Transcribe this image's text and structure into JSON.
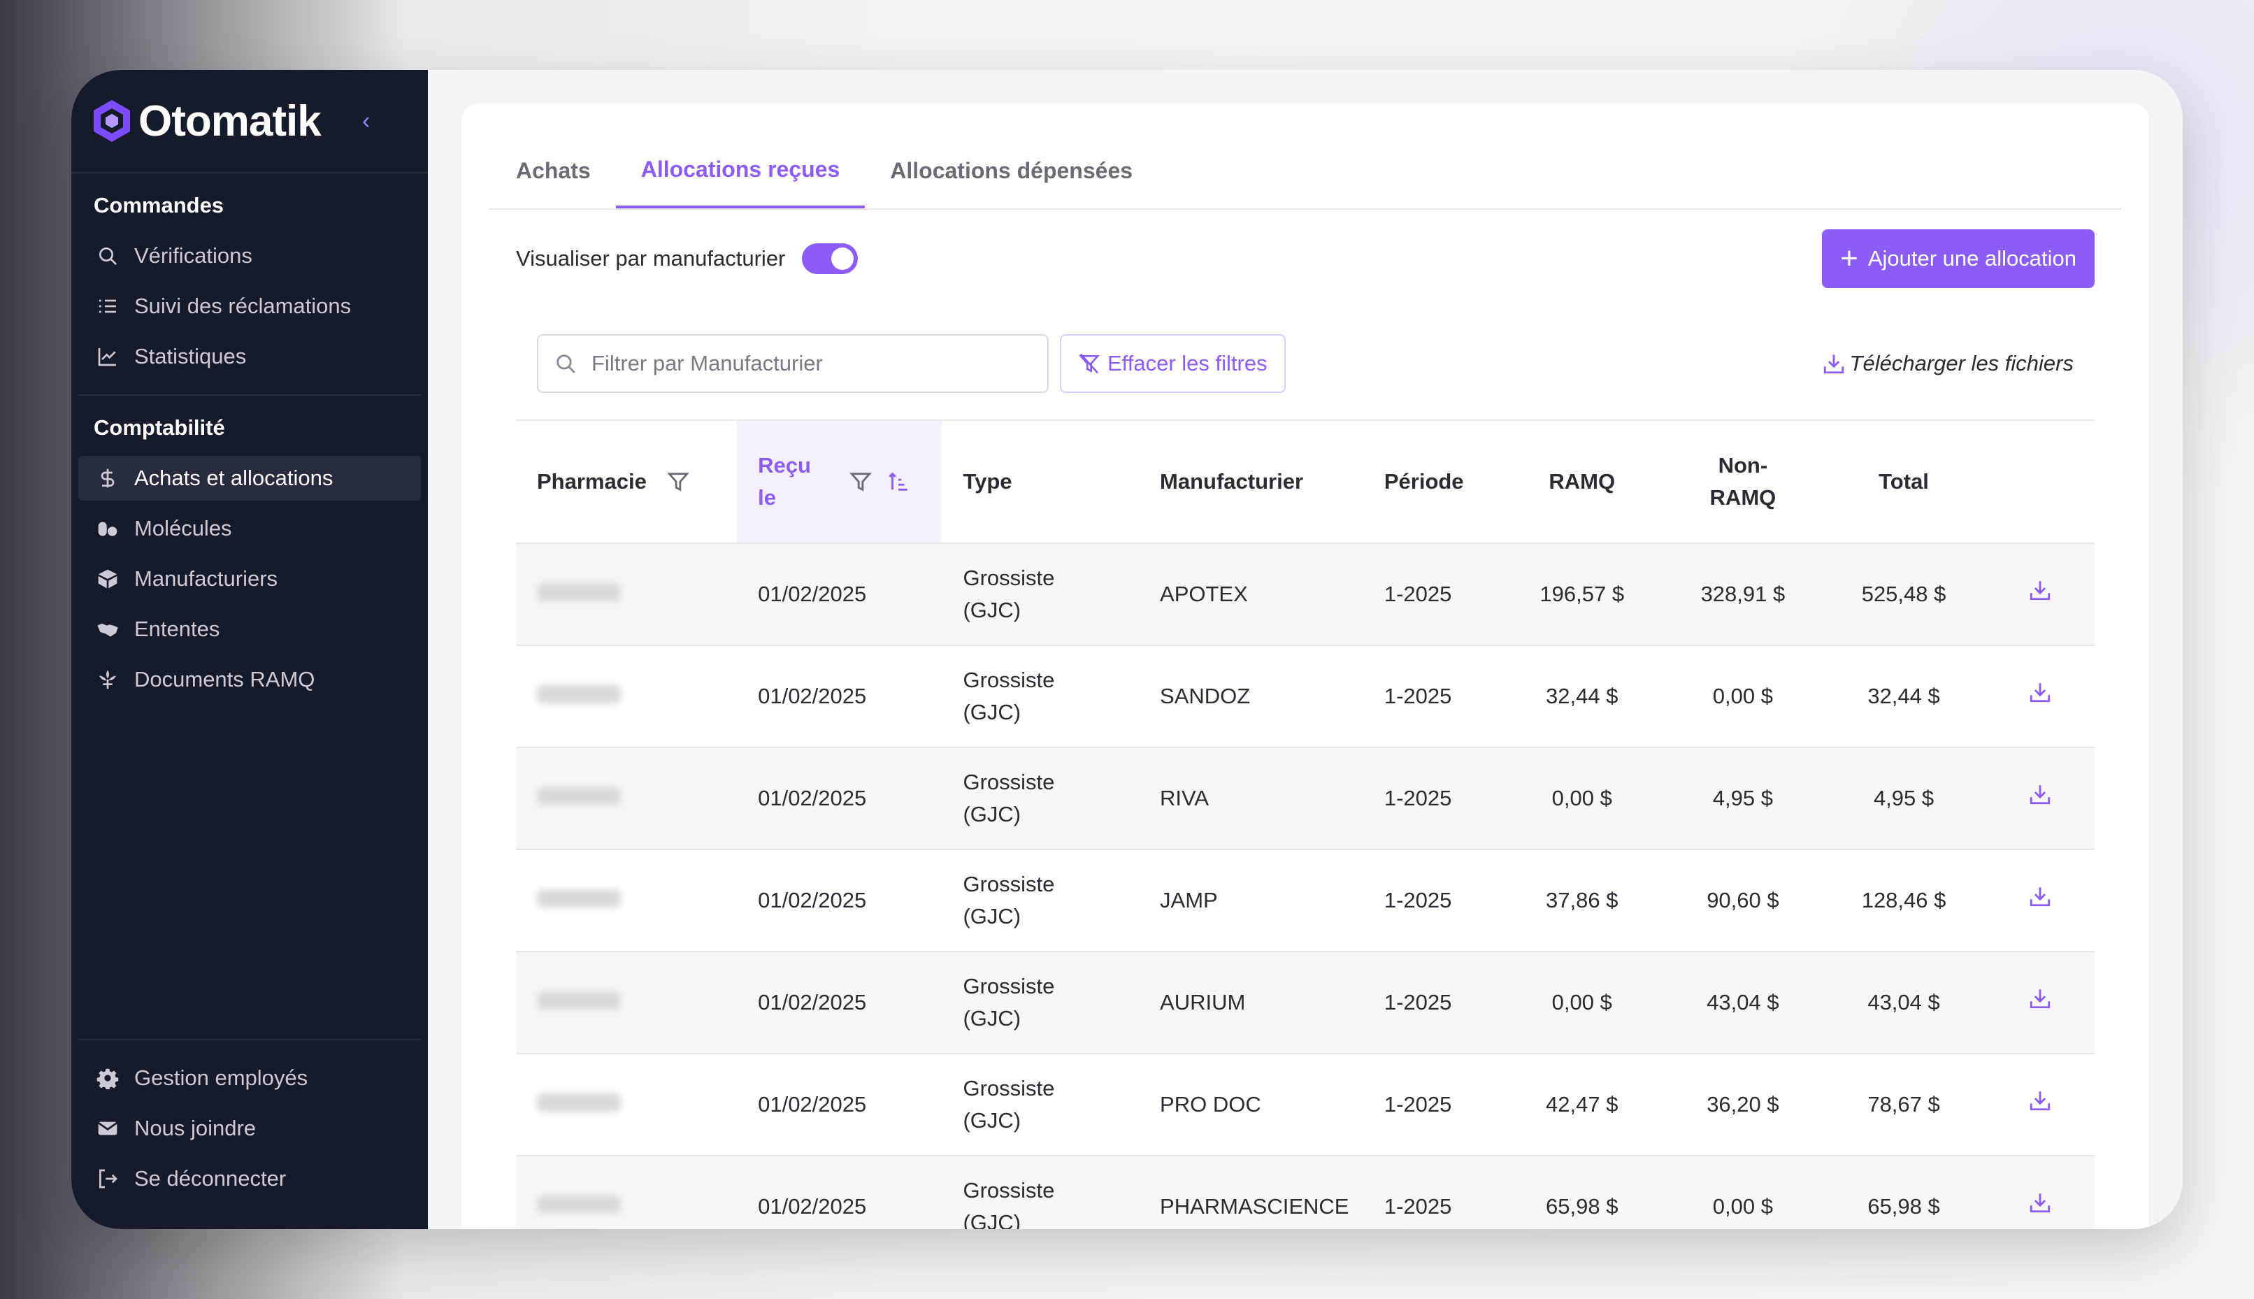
{
  "brand": {
    "name": "Otomatik",
    "accent": "#8b5cf6",
    "sidebar_bg": "#161b2b"
  },
  "sidebar": {
    "sections": [
      {
        "title": "Commandes",
        "items": [
          {
            "label": "Vérifications",
            "icon": "search-icon"
          },
          {
            "label": "Suivi des réclamations",
            "icon": "list-icon"
          },
          {
            "label": "Statistiques",
            "icon": "chart-icon"
          }
        ]
      },
      {
        "title": "Comptabilité",
        "items": [
          {
            "label": "Achats et allocations",
            "icon": "dollar-icon",
            "active": true
          },
          {
            "label": "Molécules",
            "icon": "pills-icon"
          },
          {
            "label": "Manufacturiers",
            "icon": "box-icon"
          },
          {
            "label": "Ententes",
            "icon": "handshake-icon"
          },
          {
            "label": "Documents RAMQ",
            "icon": "flower-icon"
          }
        ]
      }
    ],
    "bottom": [
      {
        "label": "Gestion employés",
        "icon": "gear-icon"
      },
      {
        "label": "Nous joindre",
        "icon": "mail-icon"
      },
      {
        "label": "Se déconnecter",
        "icon": "logout-icon"
      }
    ]
  },
  "tabs": [
    "Achats",
    "Allocations reçues",
    "Allocations dépensées"
  ],
  "active_tab": 1,
  "toolbar": {
    "toggle_label": "Visualiser par manufacturier",
    "toggle_on": true,
    "add_button": "Ajouter une allocation"
  },
  "filters": {
    "search_placeholder": "Filtrer par Manufacturier",
    "clear_button": "Effacer les filtres",
    "download_all": "Télécharger les fichiers"
  },
  "table": {
    "headers": [
      "Pharmacie",
      "Reçu le",
      "Type",
      "Manufacturier",
      "Période",
      "RAMQ",
      "Non-RAMQ",
      "Total"
    ],
    "rows": [
      {
        "date": "01/02/2025",
        "type": "Grossiste (GJC)",
        "manufacturer": "APOTEX",
        "period": "1-2025",
        "ramq": "196,57 $",
        "non_ramq": "328,91 $",
        "total": "525,48 $"
      },
      {
        "date": "01/02/2025",
        "type": "Grossiste (GJC)",
        "manufacturer": "SANDOZ",
        "period": "1-2025",
        "ramq": "32,44 $",
        "non_ramq": "0,00 $",
        "total": "32,44 $"
      },
      {
        "date": "01/02/2025",
        "type": "Grossiste (GJC)",
        "manufacturer": "RIVA",
        "period": "1-2025",
        "ramq": "0,00 $",
        "non_ramq": "4,95 $",
        "total": "4,95 $"
      },
      {
        "date": "01/02/2025",
        "type": "Grossiste (GJC)",
        "manufacturer": "JAMP",
        "period": "1-2025",
        "ramq": "37,86 $",
        "non_ramq": "90,60 $",
        "total": "128,46 $"
      },
      {
        "date": "01/02/2025",
        "type": "Grossiste (GJC)",
        "manufacturer": "AURIUM",
        "period": "1-2025",
        "ramq": "0,00 $",
        "non_ramq": "43,04 $",
        "total": "43,04 $"
      },
      {
        "date": "01/02/2025",
        "type": "Grossiste (GJC)",
        "manufacturer": "PRO DOC",
        "period": "1-2025",
        "ramq": "42,47 $",
        "non_ramq": "36,20 $",
        "total": "78,67 $"
      },
      {
        "date": "01/02/2025",
        "type": "Grossiste (GJC)",
        "manufacturer": "PHARMASCIENCE",
        "period": "1-2025",
        "ramq": "65,98 $",
        "non_ramq": "0,00 $",
        "total": "65,98 $"
      }
    ]
  }
}
